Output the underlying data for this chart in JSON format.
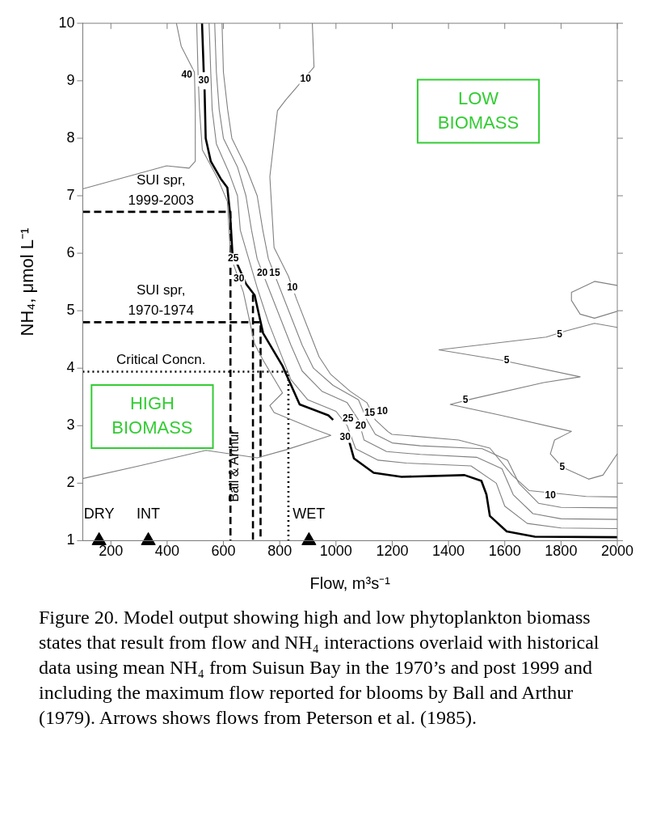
{
  "chart_data": {
    "type": "line",
    "xlabel": "Flow, m³s⁻¹",
    "ylabel": "NH₄, μmol L⁻¹",
    "xlim": [
      100,
      2000
    ],
    "ylim": [
      1,
      10
    ],
    "xticks": [
      200,
      400,
      600,
      800,
      1000,
      1200,
      1400,
      1600,
      1800,
      2000
    ],
    "yticks": [
      1,
      2,
      3,
      4,
      5,
      6,
      7,
      8,
      9,
      10
    ],
    "grid": false,
    "legend": false,
    "series": [
      {
        "type": "line",
        "color": "#808080",
        "x": [
          433,
          450,
          497,
          500,
          500,
          478,
          398,
          100,
          null,
          505,
          510,
          515,
          525,
          580,
          614,
          625,
          629,
          671,
          711,
          741,
          810,
          765,
          780,
          922,
          982,
          822,
          720,
          538,
          300,
          100
        ],
        "values": [
          10,
          9.6,
          9.15,
          8.5,
          7.6,
          7.48,
          7.52,
          7.12,
          null,
          10,
          9.1,
          8.5,
          7.8,
          7.3,
          6.9,
          6.0,
          5.9,
          5.32,
          4.42,
          4.14,
          3.57,
          3.35,
          3.23,
          2.94,
          2.83,
          2.58,
          2.44,
          2.57,
          2.3,
          2.08
        ]
      },
      {
        "type": "line",
        "color": "#000000",
        "x": [
          524,
          530,
          null,
          533,
          537,
          555,
          590,
          614,
          624,
          632,
          680,
          711,
          741,
          810,
          871,
          973,
          990,
          null,
          1048,
          1064,
          1134,
          1233,
          1457,
          1517,
          1535,
          1547,
          1607,
          1707,
          2000
        ],
        "values": [
          10,
          9.15,
          null,
          8.85,
          8,
          7.6,
          7.3,
          7.14,
          6.67,
          6.0,
          5.47,
          5.27,
          4.61,
          4.04,
          3.37,
          3.18,
          3.1,
          null,
          2.71,
          2.43,
          2.18,
          2.11,
          2.14,
          2.04,
          1.8,
          1.43,
          1.16,
          1.07,
          1.06
        ]
      },
      {
        "type": "line",
        "color": "#808080",
        "x": [
          549,
          555,
          560,
          575,
          620,
          650,
          660,
          690,
          720,
          760,
          800,
          840,
          900,
          1000,
          1040,
          1070,
          1150,
          1250,
          1480,
          1570,
          1600,
          1680,
          1800,
          2000
        ],
        "values": [
          10,
          9.15,
          8.5,
          7.9,
          7.4,
          7.0,
          6.4,
          5.9,
          5.4,
          4.8,
          4.3,
          3.8,
          3.45,
          3.25,
          3.0,
          2.6,
          2.4,
          2.35,
          2.3,
          2.0,
          1.6,
          1.3,
          1.22,
          1.21
        ]
      },
      {
        "type": "line",
        "color": "#808080",
        "x": [
          569,
          575,
          585,
          600,
          650,
          680,
          700,
          720,
          760,
          800,
          840,
          880,
          950,
          1040,
          1080,
          1100,
          1180,
          1300,
          1500,
          1590,
          1630,
          1700,
          1800,
          2000
        ],
        "values": [
          10,
          9.15,
          8.5,
          8.0,
          7.5,
          7.0,
          6.4,
          5.9,
          5.4,
          4.9,
          4.4,
          3.95,
          3.6,
          3.4,
          3.1,
          2.75,
          2.55,
          2.5,
          2.45,
          2.25,
          1.8,
          1.47,
          1.38,
          1.37
        ]
      },
      {
        "type": "line",
        "color": "#808080",
        "x": [
          595,
          600,
          615,
          630,
          680,
          720,
          740,
          760,
          800,
          840,
          880,
          920,
          990,
          1080,
          1110,
          1140,
          1200,
          1300,
          1520,
          1610,
          1650,
          1720,
          1800,
          2000
        ],
        "values": [
          10,
          9.15,
          8.5,
          8.0,
          7.5,
          7.0,
          6.4,
          5.9,
          5.4,
          4.9,
          4.4,
          4.0,
          3.7,
          3.45,
          3.1,
          2.85,
          2.7,
          2.65,
          2.6,
          2.4,
          2.0,
          1.65,
          1.58,
          1.57
        ]
      },
      {
        "type": "line",
        "color": "#808080",
        "x": [
          916,
          922,
          822,
          792,
          765,
          780,
          831,
          860,
          900,
          940,
          980,
          1050,
          1110,
          1140,
          1184,
          1199,
          1436,
          1547,
          1626,
          1687,
          1889,
          2000
        ],
        "values": [
          10,
          9.24,
          8.67,
          8.48,
          7.33,
          6.1,
          5.6,
          5.2,
          4.7,
          4.2,
          3.9,
          3.6,
          3.4,
          3.1,
          2.9,
          2.85,
          2.75,
          2.61,
          2.14,
          1.87,
          1.77,
          1.76
        ]
      },
      {
        "type": "line",
        "color": "#808080",
        "x": [
          2000,
          1919,
          1837,
          1837,
          1868,
          1919,
          2000,
          null,
          2000,
          1919,
          1819,
          1747,
          1366,
          1587,
          1868,
          1738,
          1487,
          1406,
          1587,
          1837,
          1777,
          1762,
          1804,
          1898,
          1949,
          2000
        ],
        "values": [
          5.44,
          5.51,
          5.32,
          5.18,
          4.94,
          4.87,
          4.99,
          null,
          4.71,
          4.78,
          4.65,
          4.54,
          4.32,
          4.14,
          3.85,
          3.75,
          3.47,
          3.37,
          3.18,
          2.9,
          2.75,
          2.51,
          2.28,
          2.07,
          2.14,
          2.51
        ]
      },
      {
        "type": "line",
        "color": "#000000",
        "line_style": "dashed",
        "x": [
          100,
          625,
          625
        ],
        "values": [
          6.72,
          6.72,
          1
        ]
      },
      {
        "type": "line",
        "color": "#000000",
        "line_style": "dashed",
        "x": [
          100,
          732,
          732
        ],
        "values": [
          4.8,
          4.8,
          1
        ]
      },
      {
        "type": "line",
        "color": "#000000",
        "line_style": "dashed",
        "x": [
          705,
          705
        ],
        "values": [
          5.28,
          1
        ]
      },
      {
        "type": "line",
        "color": "#000000",
        "line_style": "dotted",
        "x": [
          100,
          831,
          831
        ],
        "values": [
          3.94,
          3.94,
          1
        ]
      },
      {
        "type": "scatter",
        "color": "#000000",
        "marker": "triangle",
        "x": [
          158,
          333,
          904
        ],
        "values": [
          1,
          1,
          1
        ]
      }
    ],
    "annotations": [
      "LOW BIOMASS",
      "HIGH BIOMASS",
      {
        "text": "Ball & Arthur",
        "x": 705,
        "y": 2.3
      },
      {
        "text": "SUI spr, 1999-2003",
        "x": 378,
        "y": 6.72
      },
      {
        "text": "SUI spr, 1970-1974",
        "x": 378,
        "y": 4.8
      },
      {
        "text": "Critical Concn.",
        "x": 378,
        "y": 3.94
      },
      {
        "text": "DRY",
        "x": 158,
        "y": 1
      },
      {
        "text": "INT",
        "x": 333,
        "y": 1
      },
      {
        "text": "WET",
        "x": 904,
        "y": 1
      },
      {
        "text": "40",
        "x": 470,
        "y": 9.1
      },
      {
        "text": "30",
        "x": 530,
        "y": 9.0
      },
      {
        "text": "10",
        "x": 892,
        "y": 9.03
      },
      {
        "text": "25",
        "x": 635,
        "y": 5.9
      },
      {
        "text": "30",
        "x": 655,
        "y": 5.55
      },
      {
        "text": "20",
        "x": 738,
        "y": 5.65
      },
      {
        "text": "15",
        "x": 782,
        "y": 5.65
      },
      {
        "text": "10",
        "x": 845,
        "y": 5.4
      },
      {
        "text": "30",
        "x": 1033,
        "y": 2.8
      },
      {
        "text": "25",
        "x": 1043,
        "y": 3.12
      },
      {
        "text": "20",
        "x": 1088,
        "y": 3.0
      },
      {
        "text": "15",
        "x": 1120,
        "y": 3.22
      },
      {
        "text": "10",
        "x": 1165,
        "y": 3.25
      },
      {
        "text": "10",
        "x": 1762,
        "y": 1.79
      },
      {
        "text": "5",
        "x": 1795,
        "y": 4.58
      },
      {
        "text": "5",
        "x": 1607,
        "y": 4.13
      },
      {
        "text": "5",
        "x": 1460,
        "y": 3.44
      },
      {
        "text": "5",
        "x": 1804,
        "y": 2.28
      },
      "Figure 20. Model output showing high and low phytoplankton biomass states that result from flow and NH₄ interactions overlaid with historical data using mean NH₄  from Suisun Bay in the 1970’s and post 1999 and including the maximum flow reported for blooms by Ball and Arthur (1979). Arrows shows flows from Peterson et al. (1985)."
    ]
  }
}
